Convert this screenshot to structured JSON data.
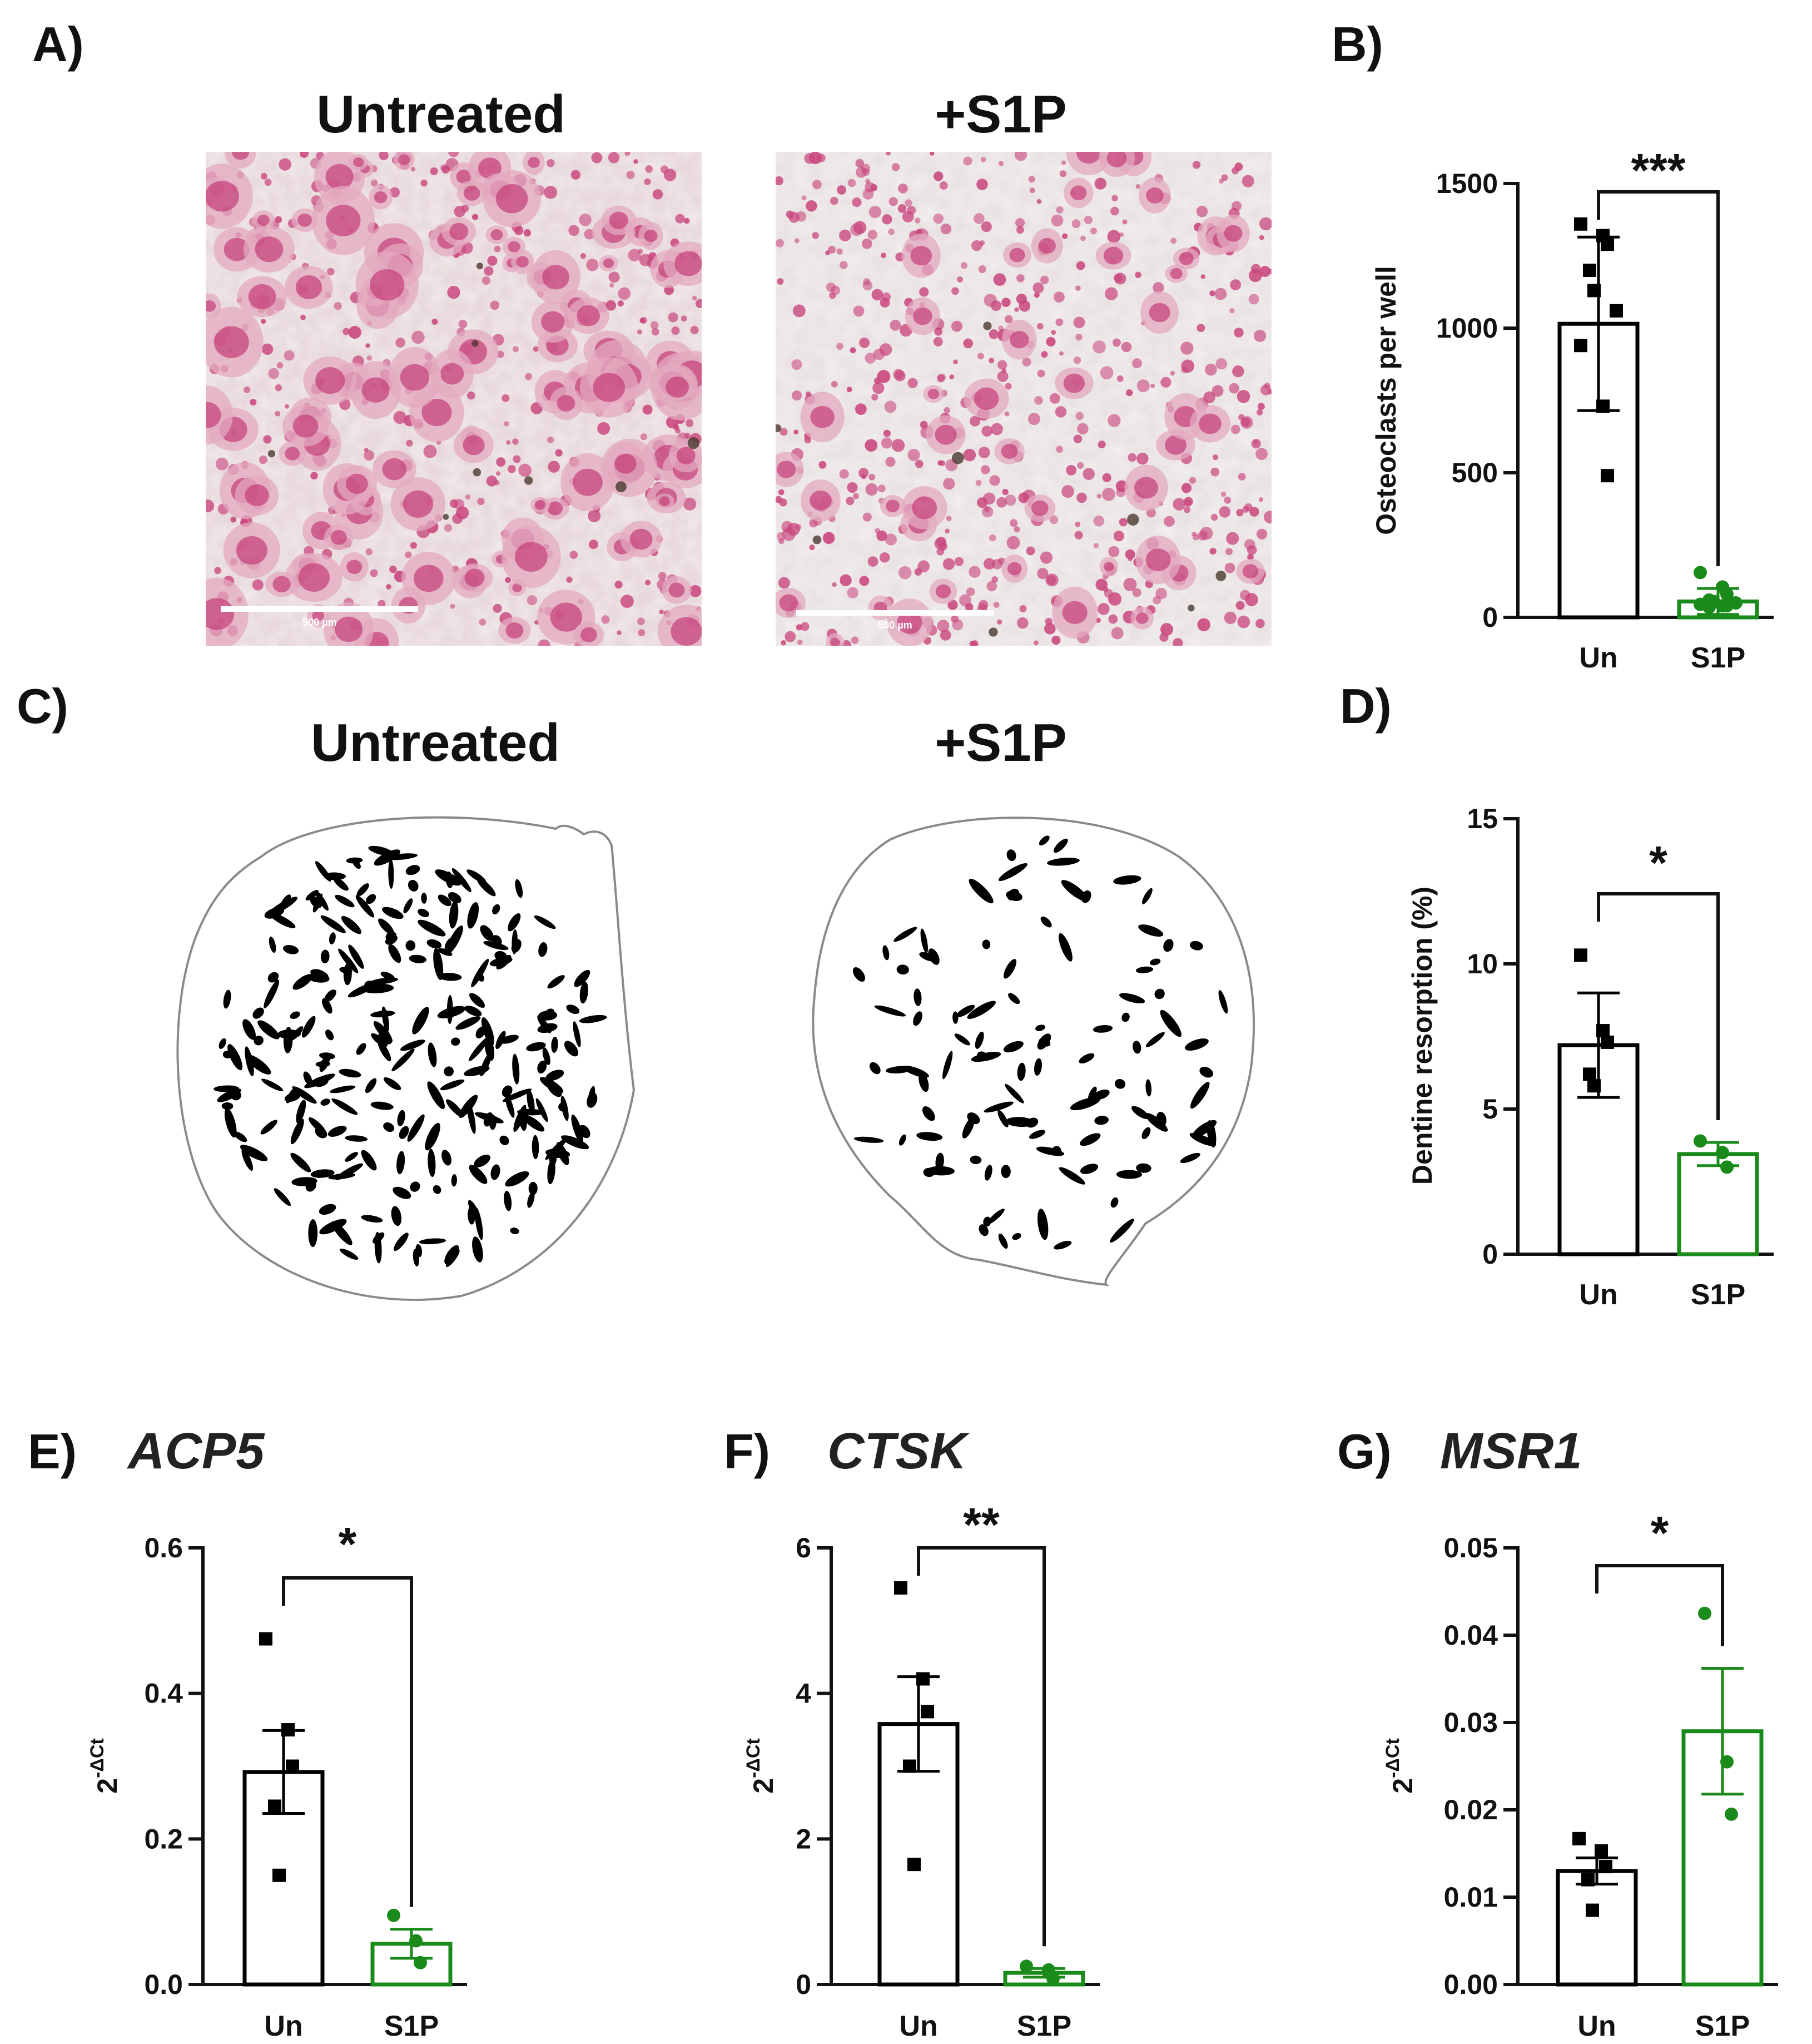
{
  "panels": {
    "A": {
      "label": "A)",
      "left_title": "Untreated",
      "right_title": "+S1P",
      "left_scale": "500 µm",
      "right_scale": "500 µm"
    },
    "C": {
      "label": "C)",
      "left_title": "Untreated",
      "right_title": "+S1P"
    }
  },
  "colors": {
    "untreated": "#000000",
    "s1p": "#1a8a1a",
    "stain_pink": "#d24f85"
  },
  "chart_data": [
    {
      "panel": "B)",
      "gene": "",
      "type": "bar",
      "categories": [
        "Un",
        "S1P"
      ],
      "ylabel": "Osteoclasts per well",
      "ylim": [
        0,
        1500
      ],
      "yticks": [
        0,
        500,
        1000,
        1500
      ],
      "ytick_labels": [
        "0",
        "500",
        "1000",
        "1500"
      ],
      "values": [
        1015,
        55
      ],
      "errors": [
        300,
        45
      ],
      "points": [
        [
          1360,
          1320,
          1290,
          1200,
          1130,
          1060,
          940,
          730,
          490
        ],
        [
          155,
          105,
          80,
          60,
          55,
          50,
          45,
          40,
          40,
          35
        ]
      ],
      "significance": "***"
    },
    {
      "panel": "D)",
      "gene": "",
      "type": "bar",
      "categories": [
        "Un",
        "S1P"
      ],
      "ylabel": "Dentine resorption (%)",
      "ylim": [
        0,
        15
      ],
      "yticks": [
        0,
        5,
        10,
        15
      ],
      "ytick_labels": [
        "0",
        "5",
        "10",
        "15"
      ],
      "values": [
        7.2,
        3.45
      ],
      "errors": [
        1.8,
        0.4
      ],
      "points": [
        [
          10.3,
          7.7,
          7.3,
          6.2,
          5.8
        ],
        [
          3.9,
          3.5,
          3.0
        ]
      ],
      "significance": "*"
    },
    {
      "panel": "E)",
      "gene": "ACP5",
      "type": "bar",
      "categories": [
        "Un",
        "S1P"
      ],
      "ylabel": "2-ΔCt",
      "ylim": [
        0,
        0.6
      ],
      "yticks": [
        0,
        0.2,
        0.4,
        0.6
      ],
      "ytick_labels": [
        "0.0",
        "0.2",
        "0.4",
        "0.6"
      ],
      "values": [
        0.292,
        0.056
      ],
      "errors": [
        0.057,
        0.02
      ],
      "points": [
        [
          0.475,
          0.35,
          0.3,
          0.245,
          0.15
        ],
        [
          0.095,
          0.06,
          0.03
        ]
      ],
      "significance": "*"
    },
    {
      "panel": "F)",
      "gene": "CTSK",
      "type": "bar",
      "categories": [
        "Un",
        "S1P"
      ],
      "ylabel": "2-ΔCt",
      "ylim": [
        0,
        6
      ],
      "yticks": [
        0,
        2,
        4,
        6
      ],
      "ytick_labels": [
        "0",
        "2",
        "4",
        "6"
      ],
      "values": [
        3.58,
        0.16
      ],
      "errors": [
        0.65,
        0.06
      ],
      "points": [
        [
          5.45,
          4.2,
          3.75,
          3.0,
          1.65
        ],
        [
          0.25,
          0.2,
          0.08
        ]
      ],
      "significance": "**"
    },
    {
      "panel": "G)",
      "gene": "MSR1",
      "type": "bar",
      "categories": [
        "Un",
        "S1P"
      ],
      "ylabel": "2-ΔCt",
      "ylim": [
        0,
        0.05
      ],
      "yticks": [
        0,
        0.01,
        0.02,
        0.03,
        0.04,
        0.05
      ],
      "ytick_labels": [
        "0.00",
        "0.01",
        "0.02",
        "0.03",
        "0.04",
        "0.05"
      ],
      "values": [
        0.013,
        0.029
      ],
      "errors": [
        0.0015,
        0.0072
      ],
      "points": [
        [
          0.0167,
          0.0153,
          0.0135,
          0.012,
          0.0085
        ],
        [
          0.0425,
          0.0255,
          0.0195
        ]
      ],
      "significance": "*"
    }
  ]
}
